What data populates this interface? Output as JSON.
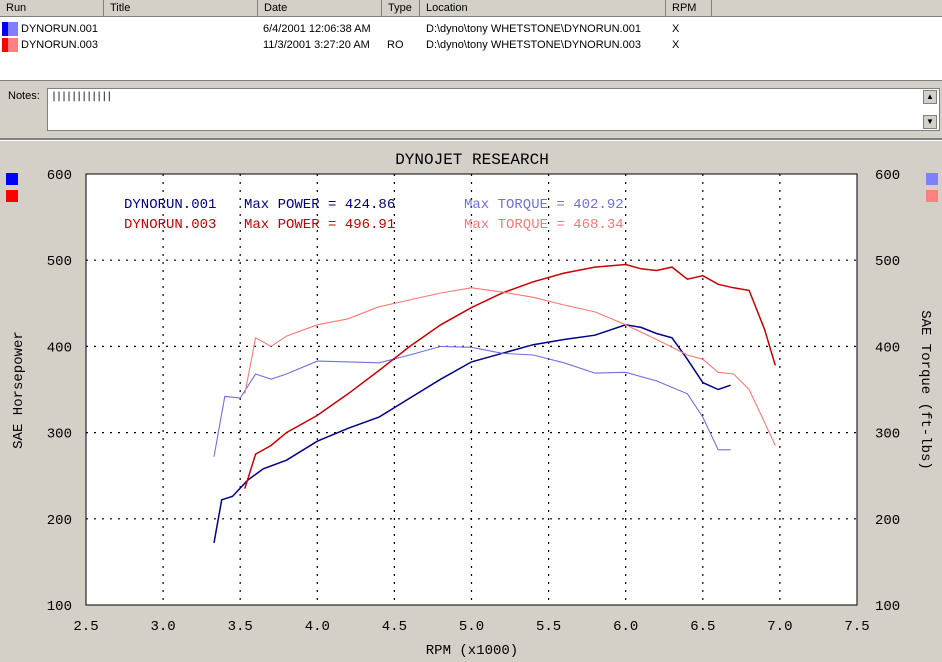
{
  "runs_table": {
    "columns": [
      "Run",
      "Title",
      "Date",
      "Type",
      "Location",
      "RPM"
    ],
    "rows": [
      {
        "run": "DYNORUN.001",
        "title": "",
        "date": "6/4/2001 12:06:38 AM",
        "type": "",
        "location": "D:\\dyno\\tony WHETSTONE\\DYNORUN.001",
        "rpm": "X",
        "color_primary": "#0000ff",
        "color_secondary": "#8080ff"
      },
      {
        "run": "DYNORUN.003",
        "title": "",
        "date": "11/3/2001 3:27:20 AM",
        "type": "RO",
        "location": "D:\\dyno\\tony WHETSTONE\\DYNORUN.003",
        "rpm": "X",
        "color_primary": "#ff0000",
        "color_secondary": "#ff8080"
      }
    ]
  },
  "notes": {
    "label": "Notes:",
    "value": "||||||||||||"
  },
  "chart_data": {
    "type": "line",
    "title": "DYNOJET RESEARCH",
    "xlabel": "RPM (x1000)",
    "ylabel": "SAE Horsepower",
    "y2label": "SAE Torque (ft-lbs)",
    "xlim": [
      2.5,
      7.5
    ],
    "ylim": [
      100,
      600
    ],
    "x_ticks": [
      "2.5",
      "3.0",
      "3.5",
      "4.0",
      "4.5",
      "5.0",
      "5.5",
      "6.0",
      "6.5",
      "7.0",
      "7.5"
    ],
    "y_ticks": [
      "100",
      "200",
      "300",
      "400",
      "500",
      "600"
    ],
    "grid": true,
    "annotations": [
      {
        "run": "DYNORUN.001",
        "max_power_label": "Max POWER = 424.86",
        "max_torque_label": "Max TORQUE = 402.92"
      },
      {
        "run": "DYNORUN.003",
        "max_power_label": "Max POWER = 496.91",
        "max_torque_label": "Max TORQUE = 468.34"
      }
    ],
    "series": [
      {
        "name": "DYNORUN.001",
        "measure": "power",
        "color": "#00008b",
        "x": [
          3.33,
          3.38,
          3.45,
          3.55,
          3.65,
          3.8,
          4.0,
          4.2,
          4.4,
          4.6,
          4.8,
          5.0,
          5.2,
          5.4,
          5.6,
          5.8,
          6.0,
          6.1,
          6.2,
          6.3,
          6.4,
          6.5,
          6.6,
          6.68
        ],
        "y": [
          172,
          222,
          226,
          245,
          258,
          268,
          290,
          305,
          318,
          340,
          362,
          382,
          392,
          402,
          408,
          413,
          425,
          422,
          415,
          410,
          385,
          358,
          350,
          355
        ]
      },
      {
        "name": "DYNORUN.001",
        "measure": "torque",
        "color": "#7070e0",
        "x": [
          3.33,
          3.4,
          3.5,
          3.6,
          3.7,
          3.8,
          4.0,
          4.2,
          4.4,
          4.6,
          4.8,
          5.0,
          5.2,
          5.4,
          5.6,
          5.8,
          6.0,
          6.2,
          6.4,
          6.5,
          6.6,
          6.68
        ],
        "y": [
          272,
          342,
          340,
          368,
          362,
          368,
          383,
          382,
          381,
          390,
          400,
          399,
          392,
          390,
          381,
          369,
          370,
          360,
          345,
          318,
          280,
          280
        ]
      },
      {
        "name": "DYNORUN.003",
        "measure": "power",
        "color": "#cc0000",
        "x": [
          3.53,
          3.6,
          3.7,
          3.8,
          4.0,
          4.2,
          4.4,
          4.6,
          4.8,
          5.0,
          5.2,
          5.4,
          5.6,
          5.8,
          6.0,
          6.1,
          6.2,
          6.3,
          6.4,
          6.5,
          6.6,
          6.7,
          6.8,
          6.9,
          6.97
        ],
        "y": [
          235,
          275,
          285,
          300,
          320,
          345,
          372,
          400,
          425,
          445,
          462,
          475,
          485,
          492,
          495,
          490,
          488,
          492,
          478,
          482,
          472,
          468,
          465,
          420,
          378
        ]
      },
      {
        "name": "DYNORUN.003",
        "measure": "torque",
        "color": "#ff7777",
        "x": [
          3.53,
          3.6,
          3.7,
          3.8,
          4.0,
          4.2,
          4.4,
          4.6,
          4.8,
          5.0,
          5.2,
          5.4,
          5.6,
          5.8,
          6.0,
          6.2,
          6.4,
          6.5,
          6.6,
          6.7,
          6.8,
          6.9,
          6.97
        ],
        "y": [
          345,
          410,
          400,
          412,
          425,
          432,
          446,
          454,
          462,
          468,
          463,
          457,
          448,
          440,
          425,
          408,
          390,
          385,
          370,
          368,
          350,
          312,
          285
        ]
      }
    ]
  }
}
